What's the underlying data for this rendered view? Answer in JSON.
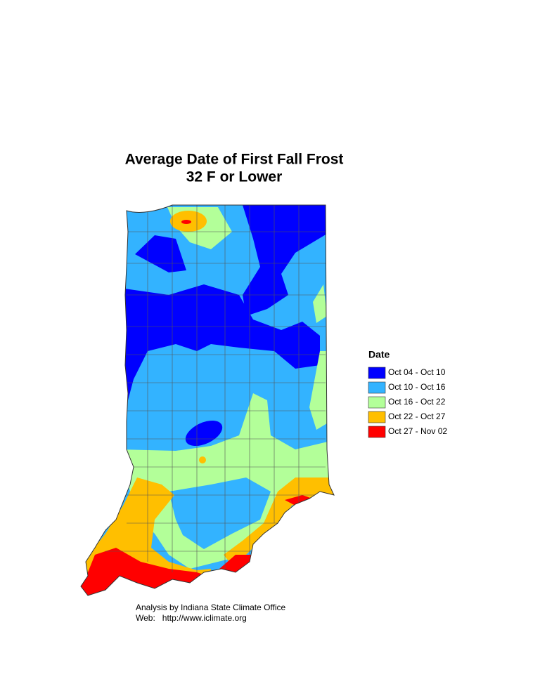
{
  "title": [
    "Average Date of First Fall Frost",
    "32 F or Lower"
  ],
  "legend": {
    "title": "Date",
    "items": [
      {
        "label": "Oct 04 - Oct 10",
        "color": "#0000ff"
      },
      {
        "label": "Oct 10 - Oct 16",
        "color": "#33b3ff"
      },
      {
        "label": "Oct 16 - Oct 22",
        "color": "#b3ff99"
      },
      {
        "label": "Oct 22 - Oct 27",
        "color": "#ffbf00"
      },
      {
        "label": "Oct 27 - Nov 02",
        "color": "#ff0000"
      }
    ]
  },
  "credits": [
    "Analysis by Indiana State Climate Office",
    "Web:   http://www.iclimate.org"
  ]
}
